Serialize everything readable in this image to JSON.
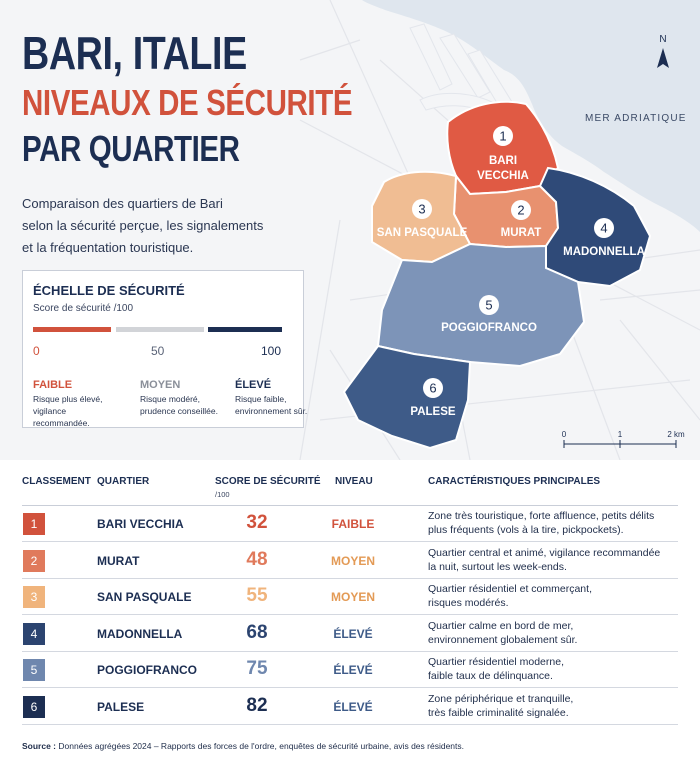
{
  "title": {
    "line1": "BARI, ITALIE",
    "line2": "NIVEAUX DE SÉCURITÉ",
    "line3": "PAR QUARTIER"
  },
  "intro": [
    "Comparaison des quartiers de Bari",
    "selon la sécurité perçue, les signalements",
    "et la fréquentation touristique."
  ],
  "scale": {
    "title": "ÉCHELLE DE SÉCURITÉ",
    "subtitle": "Score de sécurité /100",
    "ticks": [
      "0",
      "50",
      "100"
    ],
    "levels": [
      {
        "name": "FAIBLE",
        "desc": [
          "Risque plus élevé,",
          "vigilance recommandée."
        ],
        "color": "#d1523c"
      },
      {
        "name": "MOYEN",
        "desc": [
          "Risque modéré,",
          "prudence conseillée."
        ],
        "color": "#8a8f99"
      },
      {
        "name": "ÉLEVÉ",
        "desc": [
          "Risque faible,",
          "environnement sûr."
        ],
        "color": "#1c2e52"
      }
    ]
  },
  "map": {
    "sea_label": "MER ADRIATIQUE",
    "north_label": "N",
    "scalebar_labels": [
      "0",
      "1",
      "2 km"
    ],
    "districts": [
      {
        "num": "1",
        "name": "BARI VECCHIA",
        "name_lines": [
          "BARI",
          "VECCHIA"
        ],
        "color": "#e05a44"
      },
      {
        "num": "2",
        "name": "MURAT",
        "name_lines": [
          "MURAT"
        ],
        "color": "#e8916f"
      },
      {
        "num": "3",
        "name": "SAN PASQUALE",
        "name_lines": [
          "SAN PASQUALE"
        ],
        "color": "#f0bd93"
      },
      {
        "num": "4",
        "name": "MADONNELLA",
        "name_lines": [
          "MADONNELLA"
        ],
        "color": "#2f4a78"
      },
      {
        "num": "5",
        "name": "POGGIOFRANCO",
        "name_lines": [
          "POGGIOFRANCO"
        ],
        "color": "#7d94b8"
      },
      {
        "num": "6",
        "name": "PALESE",
        "name_lines": [
          "PALESE"
        ],
        "color": "#3e5b88"
      }
    ]
  },
  "table": {
    "headers": {
      "rank": "CLASSEMENT",
      "district": "QUARTIER",
      "score": "SCORE DE SÉCURITÉ",
      "score_sub": "/100",
      "level": "NIVEAU",
      "features": "CARACTÉRISTIQUES PRINCIPALES"
    },
    "rows": [
      {
        "rank": "1",
        "name": "BARI VECCHIA",
        "score": "32",
        "level": "FAIBLE",
        "color": "#d1523c",
        "level_color": "#d1523c",
        "desc": [
          "Zone très touristique, forte affluence, petits délits",
          "plus fréquents (vols à la tire, pickpockets)."
        ]
      },
      {
        "rank": "2",
        "name": "MURAT",
        "score": "48",
        "level": "MOYEN",
        "color": "#e07a5c",
        "level_color": "#e39a55",
        "desc": [
          "Quartier central et animé, vigilance recommandée",
          "la nuit, surtout les week-ends."
        ]
      },
      {
        "rank": "3",
        "name": "SAN PASQUALE",
        "score": "55",
        "level": "MOYEN",
        "color": "#f0b47c",
        "level_color": "#e39a55",
        "desc": [
          "Quartier résidentiel et commerçant,",
          "risques modérés."
        ]
      },
      {
        "rank": "4",
        "name": "MADONNELLA",
        "score": "68",
        "level": "ÉLEVÉ",
        "color": "#2c4470",
        "level_color": "#3e5b88",
        "desc": [
          "Quartier calme en bord de mer,",
          "environnement globalement sûr."
        ]
      },
      {
        "rank": "5",
        "name": "POGGIOFRANCO",
        "score": "75",
        "level": "ÉLEVÉ",
        "color": "#6f87ae",
        "level_color": "#3e5b88",
        "desc": [
          "Quartier résidentiel moderne,",
          "faible taux de délinquance."
        ]
      },
      {
        "rank": "6",
        "name": "PALESE",
        "score": "82",
        "level": "ÉLEVÉ",
        "color": "#1c2e52",
        "level_color": "#3e5b88",
        "desc": [
          "Zone périphérique et tranquille,",
          "très faible criminalité signalée."
        ]
      }
    ]
  },
  "source": {
    "label": "Source :",
    "text": " Données agrégées 2024 – Rapports des forces de l'ordre, enquêtes de sécurité urbaine, avis des résidents."
  }
}
